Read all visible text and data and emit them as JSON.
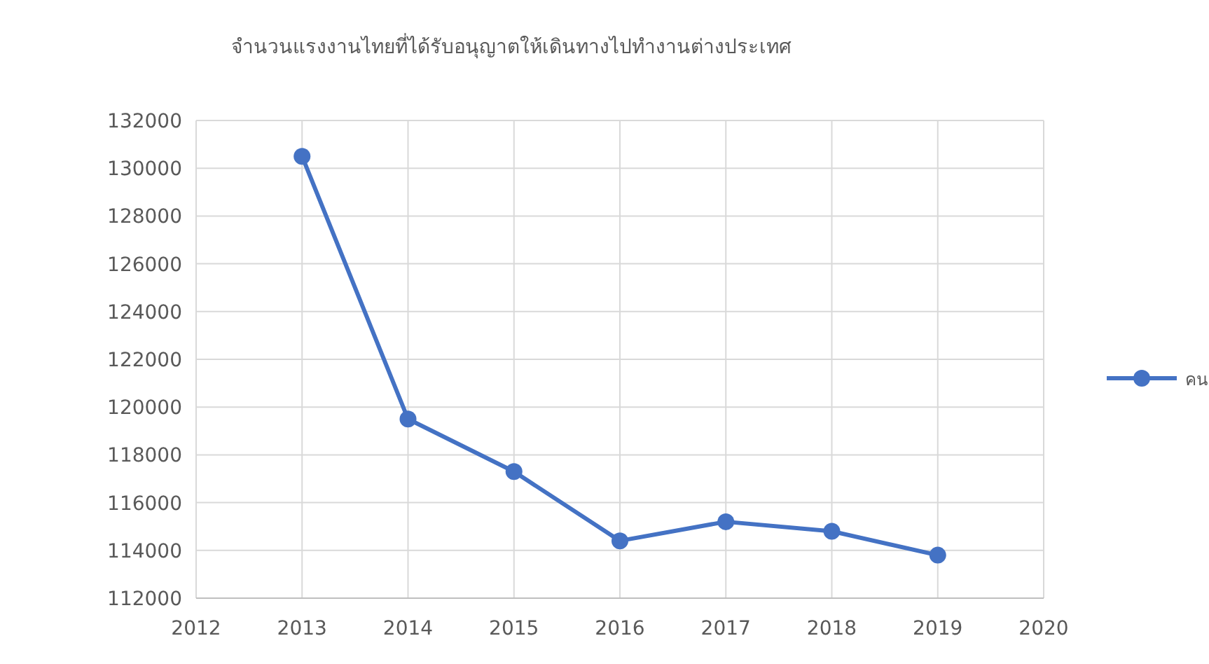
{
  "chart_data": {
    "type": "line",
    "title": "จำนวนแรงงานไทยที่ได้รับอนุญาตให้เดินทางไปทำงานต่างประเทศ",
    "x": [
      2013,
      2014,
      2015,
      2016,
      2017,
      2018,
      2019
    ],
    "series": [
      {
        "name": "คน",
        "color": "#4472c4",
        "values": [
          130500,
          119500,
          117300,
          114400,
          115200,
          114800,
          113800
        ]
      }
    ],
    "xlim": [
      2012,
      2020
    ],
    "xticks": [
      2012,
      2013,
      2014,
      2015,
      2016,
      2017,
      2018,
      2019,
      2020
    ],
    "ylim": [
      112000,
      132000
    ],
    "yticks": [
      112000,
      114000,
      116000,
      118000,
      120000,
      122000,
      124000,
      126000,
      128000,
      130000,
      132000
    ],
    "grid": true,
    "legend": "right",
    "marker": "circle",
    "line_style": "solid"
  }
}
